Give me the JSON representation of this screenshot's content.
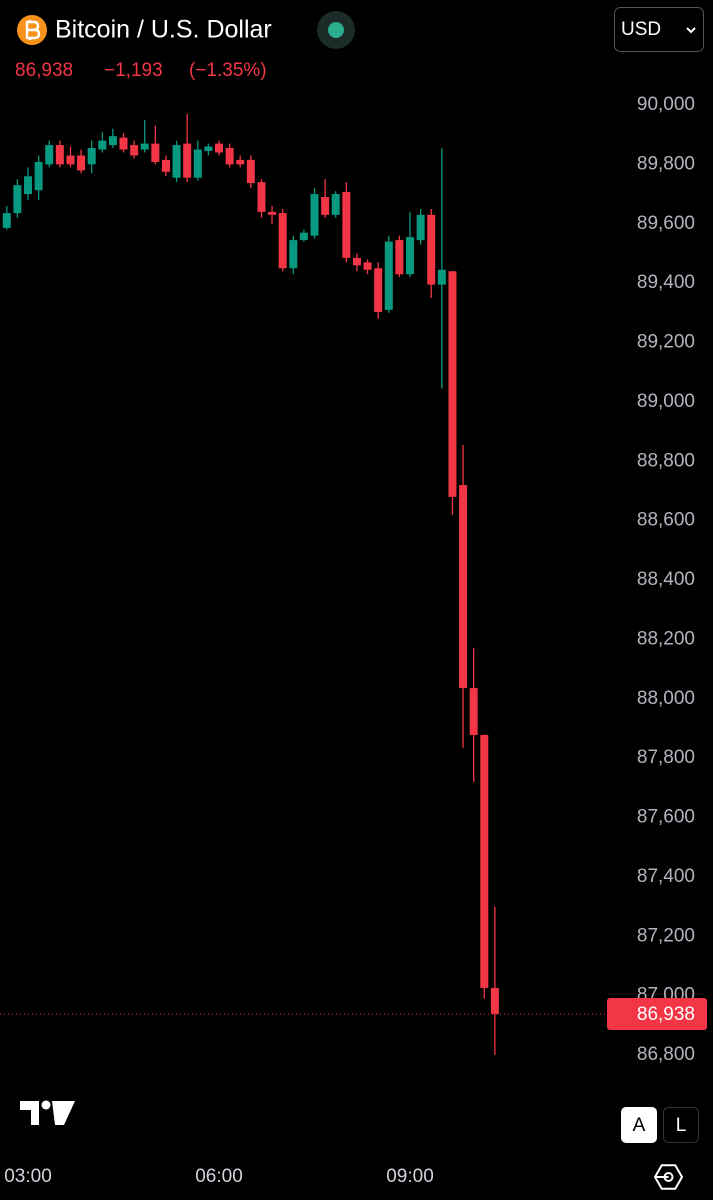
{
  "header": {
    "symbol": "Bitcoin / U.S. Dollar",
    "price": "86,938",
    "change": "−1,193",
    "change_pct": "(−1.35%)",
    "currency": "USD"
  },
  "buttons": {
    "auto": "A",
    "log": "L"
  },
  "chart_data": {
    "type": "candlestick",
    "x": [
      2.667,
      2.833,
      3,
      3.167,
      3.333,
      3.5,
      3.667,
      3.833,
      4,
      4.167,
      4.333,
      4.5,
      4.667,
      4.833,
      5,
      5.167,
      5.333,
      5.5,
      5.667,
      5.833,
      6,
      6.167,
      6.333,
      6.5,
      6.667,
      6.833,
      7,
      7.167,
      7.333,
      7.5,
      7.667,
      7.833,
      8,
      8.167,
      8.333,
      8.5,
      8.667,
      8.833,
      9,
      9.167,
      9.333,
      9.5,
      9.667,
      9.833,
      10,
      10.167,
      10.333
    ],
    "open": [
      89586,
      89636,
      89700,
      89713,
      89800,
      89865,
      89830,
      89830,
      89800,
      89850,
      89865,
      89890,
      89865,
      89850,
      89870,
      89815,
      89755,
      89870,
      89755,
      89845,
      89870,
      89855,
      89815,
      89815,
      89740,
      89640,
      89636,
      89450,
      89545,
      89560,
      89690,
      89630,
      89707,
      89485,
      89470,
      89450,
      89310,
      89545,
      89430,
      89545,
      89630,
      89395,
      89440,
      88720,
      88036,
      87878,
      87026
    ],
    "high": [
      89660,
      89750,
      89790,
      89830,
      89880,
      89880,
      89860,
      89850,
      89880,
      89910,
      89920,
      89905,
      89880,
      89950,
      89930,
      89830,
      89880,
      89970,
      89880,
      89870,
      89880,
      89870,
      89830,
      89830,
      89750,
      89660,
      89650,
      89560,
      89580,
      89720,
      89750,
      89710,
      89740,
      89500,
      89480,
      89470,
      89560,
      89560,
      89640,
      89650,
      89650,
      89855,
      89440,
      88855,
      88170,
      87880,
      87300
    ],
    "low": [
      89580,
      89620,
      89680,
      89680,
      89790,
      89790,
      89790,
      89770,
      89770,
      89840,
      89855,
      89840,
      89820,
      89840,
      89800,
      89760,
      89740,
      89740,
      89745,
      89830,
      89830,
      89790,
      89790,
      89720,
      89620,
      89600,
      89440,
      89430,
      89540,
      89550,
      89620,
      89620,
      89470,
      89440,
      89430,
      89280,
      89300,
      89420,
      89420,
      89530,
      89350,
      89045,
      88620,
      87835,
      87720,
      86990,
      86800
    ],
    "close": [
      89636,
      89730,
      89760,
      89808,
      89865,
      89800,
      89800,
      89780,
      89855,
      89880,
      89895,
      89850,
      89830,
      89870,
      89808,
      89775,
      89865,
      89755,
      89850,
      89860,
      89840,
      89800,
      89800,
      89737,
      89640,
      89630,
      89450,
      89545,
      89570,
      89700,
      89630,
      89700,
      89485,
      89460,
      89445,
      89303,
      89540,
      89430,
      89555,
      89630,
      89395,
      89445,
      88680,
      88036,
      87878,
      87026,
      86938
    ],
    "up_color": "#089981",
    "down_color": "#f23645",
    "xlim": [
      2.56,
      12
    ],
    "xticks": [
      {
        "value": 3,
        "label": "03:00"
      },
      {
        "value": 6,
        "label": "06:00"
      },
      {
        "value": 9,
        "label": "09:00"
      }
    ],
    "ylim": [
      86800,
      90000
    ],
    "yticks": [
      {
        "value": 86800,
        "label": "86,800"
      },
      {
        "value": 87000,
        "label": "87,000"
      },
      {
        "value": 87200,
        "label": "87,200"
      },
      {
        "value": 87400,
        "label": "87,400"
      },
      {
        "value": 87600,
        "label": "87,600"
      },
      {
        "value": 87800,
        "label": "87,800"
      },
      {
        "value": 88000,
        "label": "88,000"
      },
      {
        "value": 88200,
        "label": "88,200"
      },
      {
        "value": 88400,
        "label": "88,400"
      },
      {
        "value": 88600,
        "label": "88,600"
      },
      {
        "value": 88800,
        "label": "88,800"
      },
      {
        "value": 89000,
        "label": "89,000"
      },
      {
        "value": 89200,
        "label": "89,200"
      },
      {
        "value": 89400,
        "label": "89,400"
      },
      {
        "value": 89600,
        "label": "89,600"
      },
      {
        "value": 89800,
        "label": "89,800"
      },
      {
        "value": 90000,
        "label": "90,000"
      }
    ],
    "last_price": {
      "value": 86938,
      "label": "86,938"
    },
    "grid": false
  }
}
